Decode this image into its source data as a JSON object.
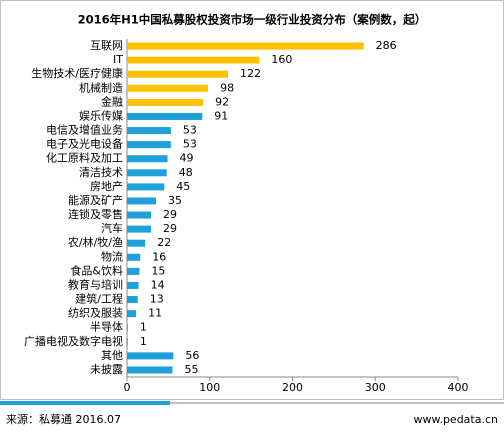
{
  "chart_data": {
    "type": "bar",
    "orientation": "horizontal",
    "title": "2016年H1中国私募股权投资市场一级行业投资分布（案例数，起）",
    "categories": [
      "互联网",
      "IT",
      "生物技术/医疗健康",
      "机械制造",
      "金融",
      "娱乐传媒",
      "电信及增值业务",
      "电子及光电设备",
      "化工原料及加工",
      "清洁技术",
      "房地产",
      "能源及矿产",
      "连锁及零售",
      "汽车",
      "农/林/牧/渔",
      "物流",
      "食品&饮料",
      "教育与培训",
      "建筑/工程",
      "纺织及服装",
      "半导体",
      "广播电视及数字电视",
      "其他",
      "未披露"
    ],
    "values": [
      286,
      160,
      122,
      98,
      92,
      91,
      53,
      53,
      49,
      48,
      45,
      35,
      29,
      29,
      22,
      16,
      15,
      14,
      13,
      11,
      1,
      1,
      56,
      55
    ],
    "colors": [
      "#FFC000",
      "#FFC000",
      "#FFC000",
      "#FFC000",
      "#FFC000",
      "#1FA0DB",
      "#1FA0DB",
      "#1FA0DB",
      "#1FA0DB",
      "#1FA0DB",
      "#1FA0DB",
      "#1FA0DB",
      "#1FA0DB",
      "#1FA0DB",
      "#1FA0DB",
      "#1FA0DB",
      "#1FA0DB",
      "#1FA0DB",
      "#1FA0DB",
      "#1FA0DB",
      "#1FA0DB",
      "#1FA0DB",
      "#1FA0DB",
      "#1FA0DB"
    ],
    "xlim": [
      0,
      400
    ],
    "xticks": [
      0,
      100,
      200,
      300,
      400
    ]
  },
  "footer": {
    "source": "来源：私募通 2016.07",
    "website": "www.pedata.cn"
  }
}
